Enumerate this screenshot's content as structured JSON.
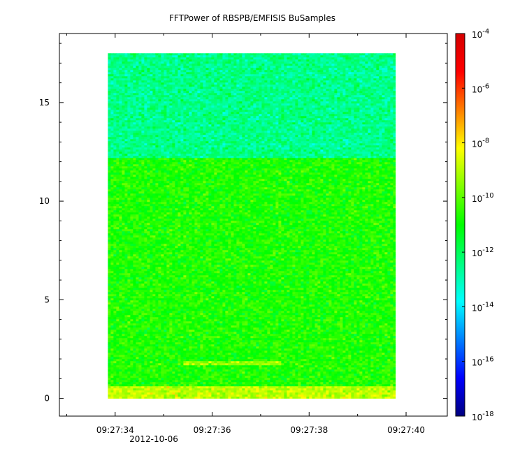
{
  "chart_data": {
    "type": "heatmap",
    "title": "FFTPower of RBSPB/EMFISIS  BuSamples",
    "xlabel": "",
    "ylabel": "",
    "x_axis": {
      "ticks": [
        "09:27:34",
        "09:27:36",
        "09:27:38",
        "09:27:40"
      ],
      "tick_seconds": [
        34,
        36,
        38,
        40
      ],
      "range_seconds": [
        32.85,
        40.85
      ],
      "date_label": "2012-10-06"
    },
    "y_axis": {
      "ticks": [
        "0",
        "5",
        "10",
        "15"
      ],
      "tick_values": [
        0,
        5,
        10,
        15
      ],
      "range": [
        -0.9,
        18.5
      ]
    },
    "data_extent": {
      "x_seconds": [
        33.85,
        39.78
      ],
      "y": [
        0,
        17.5
      ]
    },
    "features": [
      {
        "y_range": [
          12.2,
          17.5
        ],
        "log10_power": -12.5
      },
      {
        "y_range": [
          0.6,
          12.2
        ],
        "log10_power": -10.7
      },
      {
        "y_range": [
          1.65,
          1.85
        ],
        "x_seconds": [
          35.4,
          37.4
        ],
        "log10_power": -9.3
      },
      {
        "y_range": [
          0,
          0.6
        ],
        "log10_power": -8.9
      }
    ],
    "colorbar": {
      "scale": "log",
      "range_exponents": [
        -18,
        -4
      ],
      "tick_exponents": [
        -4,
        -6,
        -8,
        -10,
        -12,
        -14,
        -16,
        -18
      ],
      "base": "10",
      "colormap": [
        "#00007f",
        "#0000ff",
        "#007fff",
        "#00ffff",
        "#00ff7f",
        "#00ff00",
        "#7fff00",
        "#ffff00",
        "#ff7f00",
        "#ff0000",
        "#d40000"
      ]
    }
  }
}
